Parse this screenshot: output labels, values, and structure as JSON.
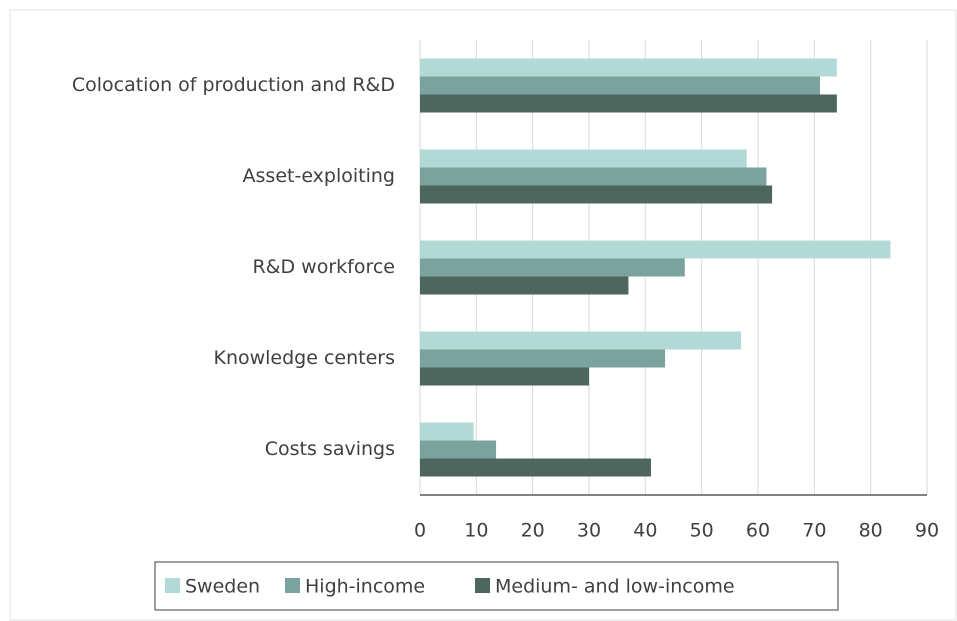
{
  "chart_data": {
    "type": "bar",
    "orientation": "horizontal",
    "categories": [
      "Colocation of production and R&D",
      "Asset-exploiting",
      "R&D workforce",
      "Knowledge centers",
      "Costs savings"
    ],
    "series": [
      {
        "name": "Sweden",
        "color": "#b3d9d6",
        "values": [
          74,
          58,
          83.5,
          57,
          9.5
        ]
      },
      {
        "name": "High-income",
        "color": "#7aa39e",
        "values": [
          71,
          61.5,
          47,
          43.5,
          13.5
        ]
      },
      {
        "name": "Medium- and low-income",
        "color": "#4d665e",
        "values": [
          74,
          62.5,
          37,
          30,
          41
        ]
      }
    ],
    "xlim": [
      0,
      90
    ],
    "xticks": [
      0,
      10,
      20,
      30,
      40,
      50,
      60,
      70,
      80,
      90
    ],
    "grid": true,
    "legend": "bottom"
  }
}
